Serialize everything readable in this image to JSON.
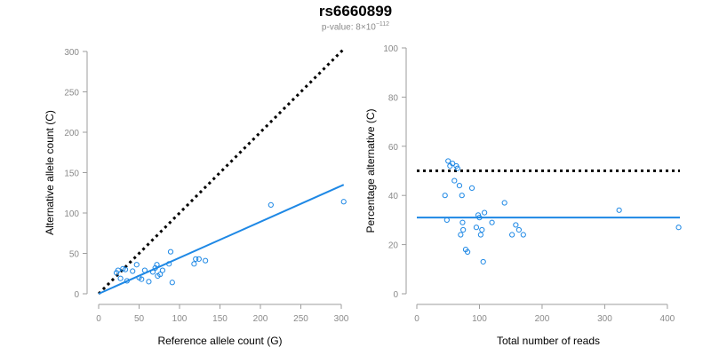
{
  "header": {
    "title": "rs6660899",
    "pvalue_prefix": "p-value: 8",
    "pvalue_times": "×",
    "pvalue_base": "10",
    "pvalue_exponent": "−112"
  },
  "colors": {
    "points": "#1e88e5",
    "fit": "#1e88e5",
    "reference": "#000000",
    "axis": "#9e9e9e",
    "tick_text": "#8a8a8a"
  },
  "chart_data": [
    {
      "type": "scatter",
      "xlabel": "Reference allele count (G)",
      "ylabel": "Alternative allele count (C)",
      "xlim": [
        0,
        300
      ],
      "ylim": [
        0,
        300
      ],
      "xticks": [
        0,
        50,
        100,
        150,
        200,
        250,
        300
      ],
      "yticks": [
        0,
        50,
        100,
        150,
        200,
        250,
        300
      ],
      "points": [
        [
          22,
          26
        ],
        [
          24,
          29
        ],
        [
          27,
          19
        ],
        [
          30,
          31
        ],
        [
          33,
          30
        ],
        [
          35,
          16
        ],
        [
          42,
          28
        ],
        [
          47,
          36
        ],
        [
          50,
          20
        ],
        [
          53,
          18
        ],
        [
          57,
          29
        ],
        [
          62,
          15
        ],
        [
          67,
          27
        ],
        [
          70,
          32
        ],
        [
          72,
          36
        ],
        [
          73,
          22
        ],
        [
          76,
          24
        ],
        [
          79,
          29
        ],
        [
          87,
          37
        ],
        [
          89,
          52
        ],
        [
          91,
          14
        ],
        [
          118,
          37
        ],
        [
          120,
          43
        ],
        [
          124,
          43
        ],
        [
          132,
          41
        ],
        [
          213,
          110
        ],
        [
          303,
          114
        ]
      ],
      "fit_line": [
        [
          0,
          0
        ],
        [
          303,
          135
        ]
      ],
      "reference_line": [
        [
          0,
          0
        ],
        [
          303,
          303
        ]
      ]
    },
    {
      "type": "scatter",
      "xlabel": "Total number of reads",
      "ylabel": "Percentage alternative (C)",
      "xlim": [
        0,
        420
      ],
      "ylim": [
        0,
        100
      ],
      "xticks": [
        0,
        100,
        200,
        300,
        400
      ],
      "yticks": [
        0,
        20,
        40,
        60,
        80,
        100
      ],
      "points": [
        [
          45,
          40
        ],
        [
          48,
          30
        ],
        [
          50,
          54
        ],
        [
          53,
          52
        ],
        [
          57,
          53
        ],
        [
          60,
          46
        ],
        [
          63,
          52
        ],
        [
          65,
          51
        ],
        [
          68,
          44
        ],
        [
          70,
          24
        ],
        [
          72,
          40
        ],
        [
          73,
          29
        ],
        [
          74,
          26
        ],
        [
          78,
          18
        ],
        [
          81,
          17
        ],
        [
          88,
          43
        ],
        [
          95,
          27
        ],
        [
          98,
          32
        ],
        [
          100,
          31
        ],
        [
          102,
          24
        ],
        [
          104,
          26
        ],
        [
          106,
          13
        ],
        [
          108,
          33
        ],
        [
          120,
          29
        ],
        [
          140,
          37
        ],
        [
          152,
          24
        ],
        [
          158,
          28
        ],
        [
          163,
          26
        ],
        [
          170,
          24
        ],
        [
          323,
          34
        ],
        [
          418,
          27
        ]
      ],
      "fit_line": [
        [
          0,
          31
        ],
        [
          420,
          31
        ]
      ],
      "reference_line": [
        [
          0,
          50
        ],
        [
          420,
          50
        ]
      ]
    }
  ]
}
